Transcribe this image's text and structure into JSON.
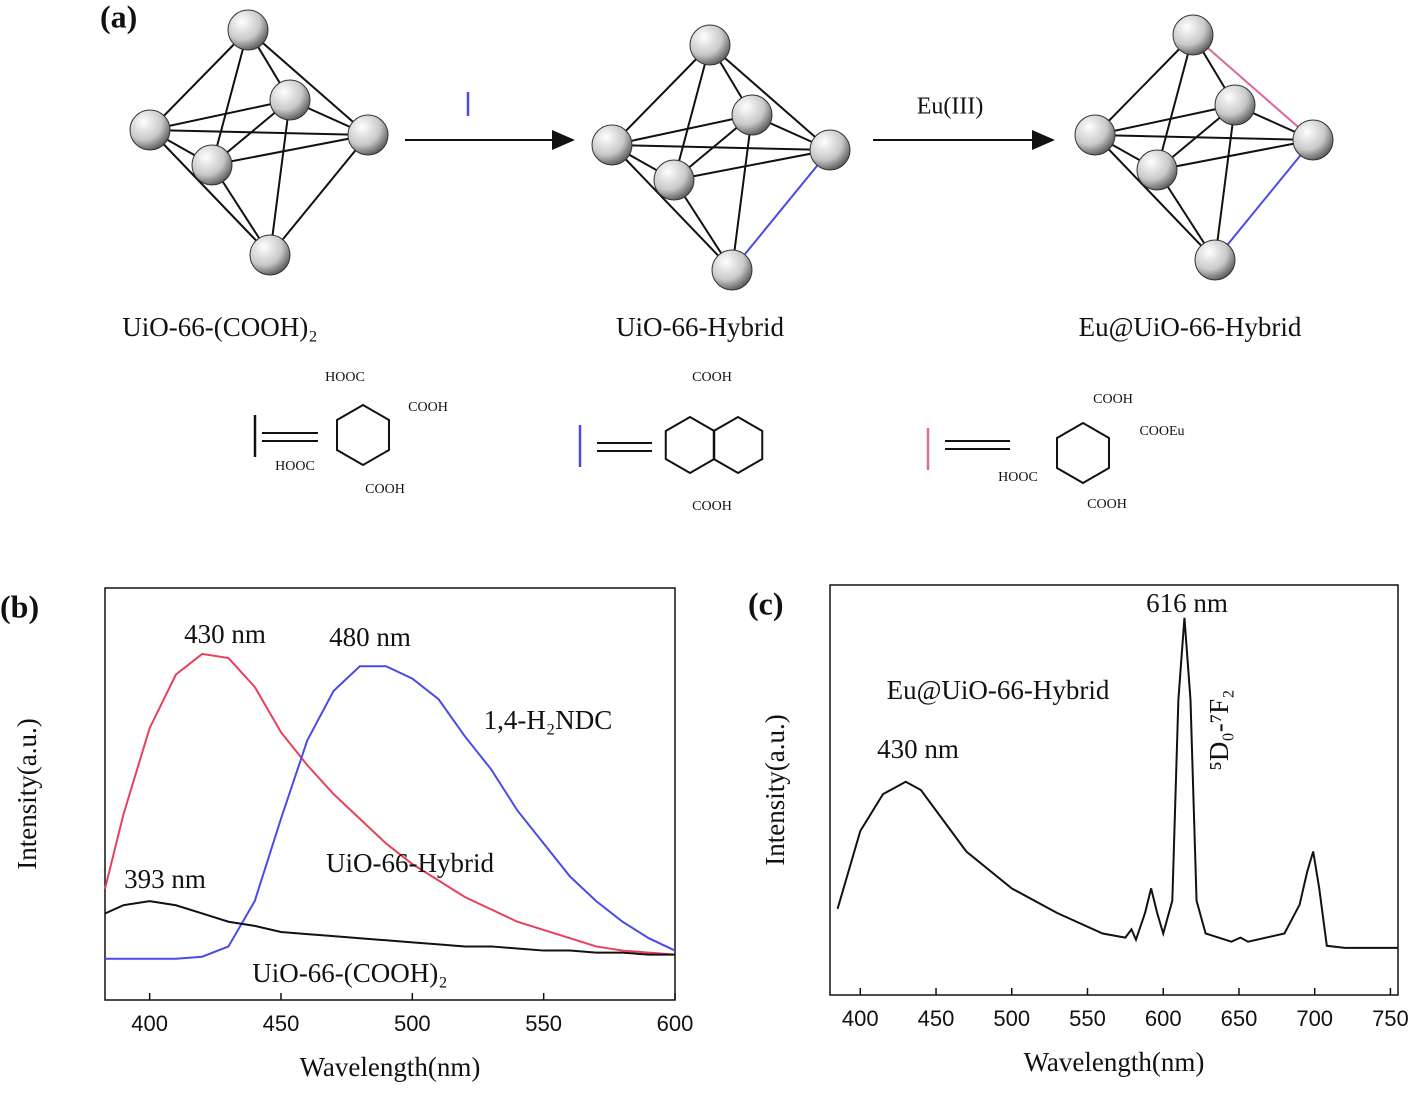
{
  "diagram": {
    "panel": "(a)",
    "structures": [
      "UiO-66-(COOH)₂",
      "UiO-66-Hybrid",
      "Eu@UiO-66-Hybrid"
    ],
    "arrow_label": "Eu(III)",
    "ligands": [
      {
        "groups": [
          "HOOC",
          "COOH",
          "HOOC",
          "COOH"
        ]
      },
      {
        "groups": [
          "COOH",
          "COOH"
        ]
      },
      {
        "groups": [
          "COOH",
          "COOEu",
          "HOOC",
          "COOH"
        ]
      }
    ]
  },
  "chart_data": [
    {
      "type": "line",
      "panel": "(b)",
      "xlabel": "Wavelength(nm)",
      "ylabel": "Intensity(a.u.)",
      "x": [
        383,
        390,
        400,
        410,
        420,
        430,
        440,
        450,
        460,
        470,
        480,
        490,
        500,
        510,
        520,
        530,
        540,
        550,
        560,
        570,
        580,
        590,
        600
      ],
      "series": [
        {
          "name": "UiO-66-Hybrid",
          "color": "#e8405a",
          "values": [
            27,
            45,
            66,
            79,
            84,
            83,
            76,
            65,
            57,
            50,
            44,
            38,
            33,
            29,
            25,
            22,
            19,
            17,
            15,
            13,
            12,
            11.5,
            11
          ]
        },
        {
          "name": "1,4-H₂NDC",
          "color": "#4a4ae6",
          "values": [
            10,
            10,
            10,
            10,
            10.5,
            13,
            24,
            44,
            63,
            75,
            81,
            81,
            78,
            73,
            64,
            56,
            46,
            38,
            30,
            24,
            19,
            15,
            12
          ]
        },
        {
          "name": "UiO-66-(COOH)₂",
          "color": "#111111",
          "values": [
            21,
            23,
            24,
            23,
            21,
            19,
            18,
            16.5,
            16,
            15.5,
            15,
            14.5,
            14,
            13.5,
            13,
            13,
            12.5,
            12,
            12,
            11.5,
            11.5,
            11,
            11
          ]
        }
      ],
      "annotations": [
        "430 nm",
        "480 nm",
        "393 nm"
      ],
      "xlim": [
        383,
        600
      ],
      "xticks": [
        400,
        450,
        500,
        550,
        600
      ],
      "ylim": [
        0,
        100
      ]
    },
    {
      "type": "line",
      "panel": "(c)",
      "xlabel": "Wavelength(nm)",
      "ylabel": "Intensity(a.u.)",
      "x": [
        385,
        400,
        415,
        430,
        440,
        450,
        470,
        500,
        530,
        560,
        575,
        579,
        582,
        588,
        592,
        596,
        600,
        606,
        610,
        614,
        618,
        622,
        628,
        645,
        651,
        656,
        680,
        690,
        695,
        699,
        703,
        708,
        720,
        755
      ],
      "series": [
        {
          "name": "Eu@UiO-66-Hybrid",
          "color": "#111111",
          "values": [
            21,
            40,
            49,
            52,
            50,
            45,
            35,
            26,
            20,
            15,
            14,
            16,
            13.5,
            20,
            26,
            20,
            15,
            23,
            72,
            92,
            72,
            23,
            15,
            13,
            14,
            13,
            15,
            22,
            30,
            35,
            26,
            12,
            11.5,
            11.5
          ]
        }
      ],
      "annotations": [
        "616 nm",
        "430 nm",
        "⁵D₀-⁷F₂"
      ],
      "xlim": [
        380,
        755
      ],
      "xticks": [
        400,
        450,
        500,
        550,
        600,
        650,
        700,
        750
      ],
      "ylim": [
        0,
        100
      ]
    }
  ]
}
